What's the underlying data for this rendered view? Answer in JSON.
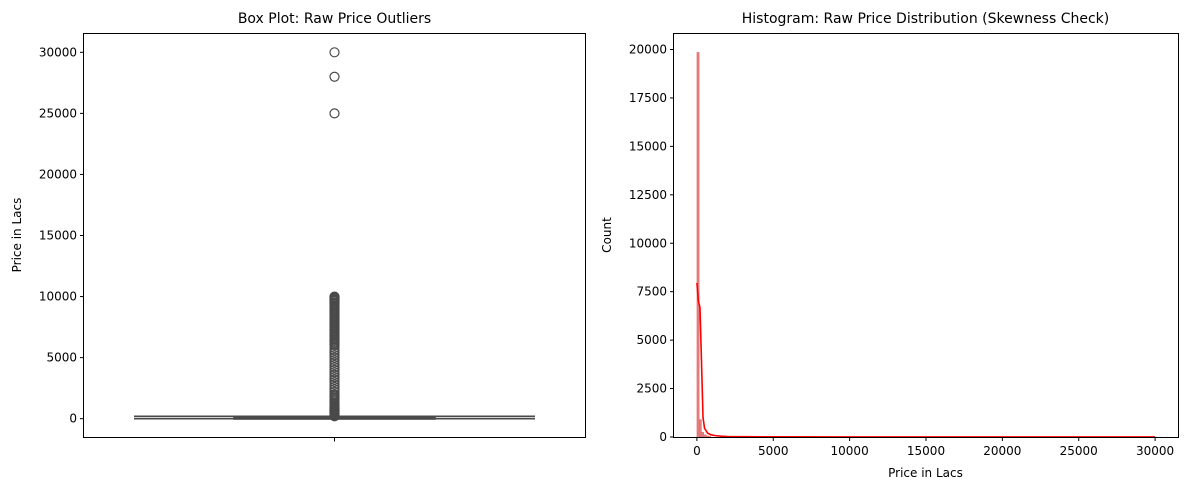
{
  "chart_data": [
    {
      "type": "box",
      "title": "Box Plot: Raw Price Outliers",
      "xlabel": "",
      "ylabel": "Price in Lacs",
      "ylim": [
        -1500,
        31500
      ],
      "yticks": [
        0,
        5000,
        10000,
        15000,
        20000,
        25000,
        30000
      ],
      "grid": false,
      "box": {
        "q1": 38,
        "median": 62,
        "q3": 100,
        "whisker_low": 2,
        "whisker_high": 193,
        "color": "#4a4a4a"
      },
      "outliers": [
        30000,
        28000,
        25000,
        10000,
        9950,
        9900,
        9850,
        9800,
        9750,
        9700,
        9650,
        9600,
        9500,
        9450,
        9400,
        9300,
        9200,
        9100,
        9000,
        8900,
        8800,
        8700,
        8600,
        8500,
        8400,
        8300,
        8200,
        8100,
        8000,
        7900,
        7800,
        7700,
        7600,
        7500,
        7400,
        7300,
        7200,
        7100,
        7000,
        6900,
        6800,
        6700,
        6600,
        6500,
        6400,
        6300,
        6200,
        6100,
        6000,
        5800,
        5600,
        5400,
        5200,
        5000,
        4800,
        4600,
        4400,
        4200,
        4000,
        3800,
        3600,
        3400,
        3200,
        3000,
        2800,
        2600,
        2400,
        2200,
        2000,
        1900,
        1800,
        1700,
        1600,
        1500,
        1400,
        1300,
        1200,
        1100,
        1000,
        950,
        900,
        850,
        800,
        750,
        700,
        650,
        600,
        550,
        500,
        450,
        400,
        350,
        300,
        250,
        220,
        200
      ]
    },
    {
      "type": "histogram",
      "title": "Histogram: Raw Price Distribution (Skewness Check)",
      "xlabel": "Price in Lacs",
      "ylabel": "Count",
      "xlim": [
        -1500,
        31500
      ],
      "ylim": [
        0,
        20800
      ],
      "xticks": [
        0,
        5000,
        10000,
        15000,
        20000,
        25000,
        30000
      ],
      "yticks": [
        0,
        2500,
        5000,
        7500,
        10000,
        12500,
        15000,
        17500,
        20000
      ],
      "grid": false,
      "bar_color": "#e06666",
      "kde_color": "#ff0000",
      "bins": [
        {
          "x0": 0,
          "x1": 150,
          "count": 19850
        },
        {
          "x0": 150,
          "x1": 300,
          "count": 900
        },
        {
          "x0": 300,
          "x1": 450,
          "count": 250
        },
        {
          "x0": 450,
          "x1": 600,
          "count": 120
        },
        {
          "x0": 600,
          "x1": 750,
          "count": 60
        },
        {
          "x0": 750,
          "x1": 900,
          "count": 30
        }
      ],
      "kde": {
        "x": [
          0,
          100,
          200,
          300,
          400,
          500,
          700,
          900,
          1200,
          1600,
          2000,
          3000,
          5000,
          10000,
          20000,
          30000
        ],
        "y": [
          7950,
          7000,
          6700,
          3900,
          1000,
          450,
          200,
          120,
          70,
          40,
          25,
          15,
          8,
          5,
          3,
          3
        ]
      }
    }
  ]
}
